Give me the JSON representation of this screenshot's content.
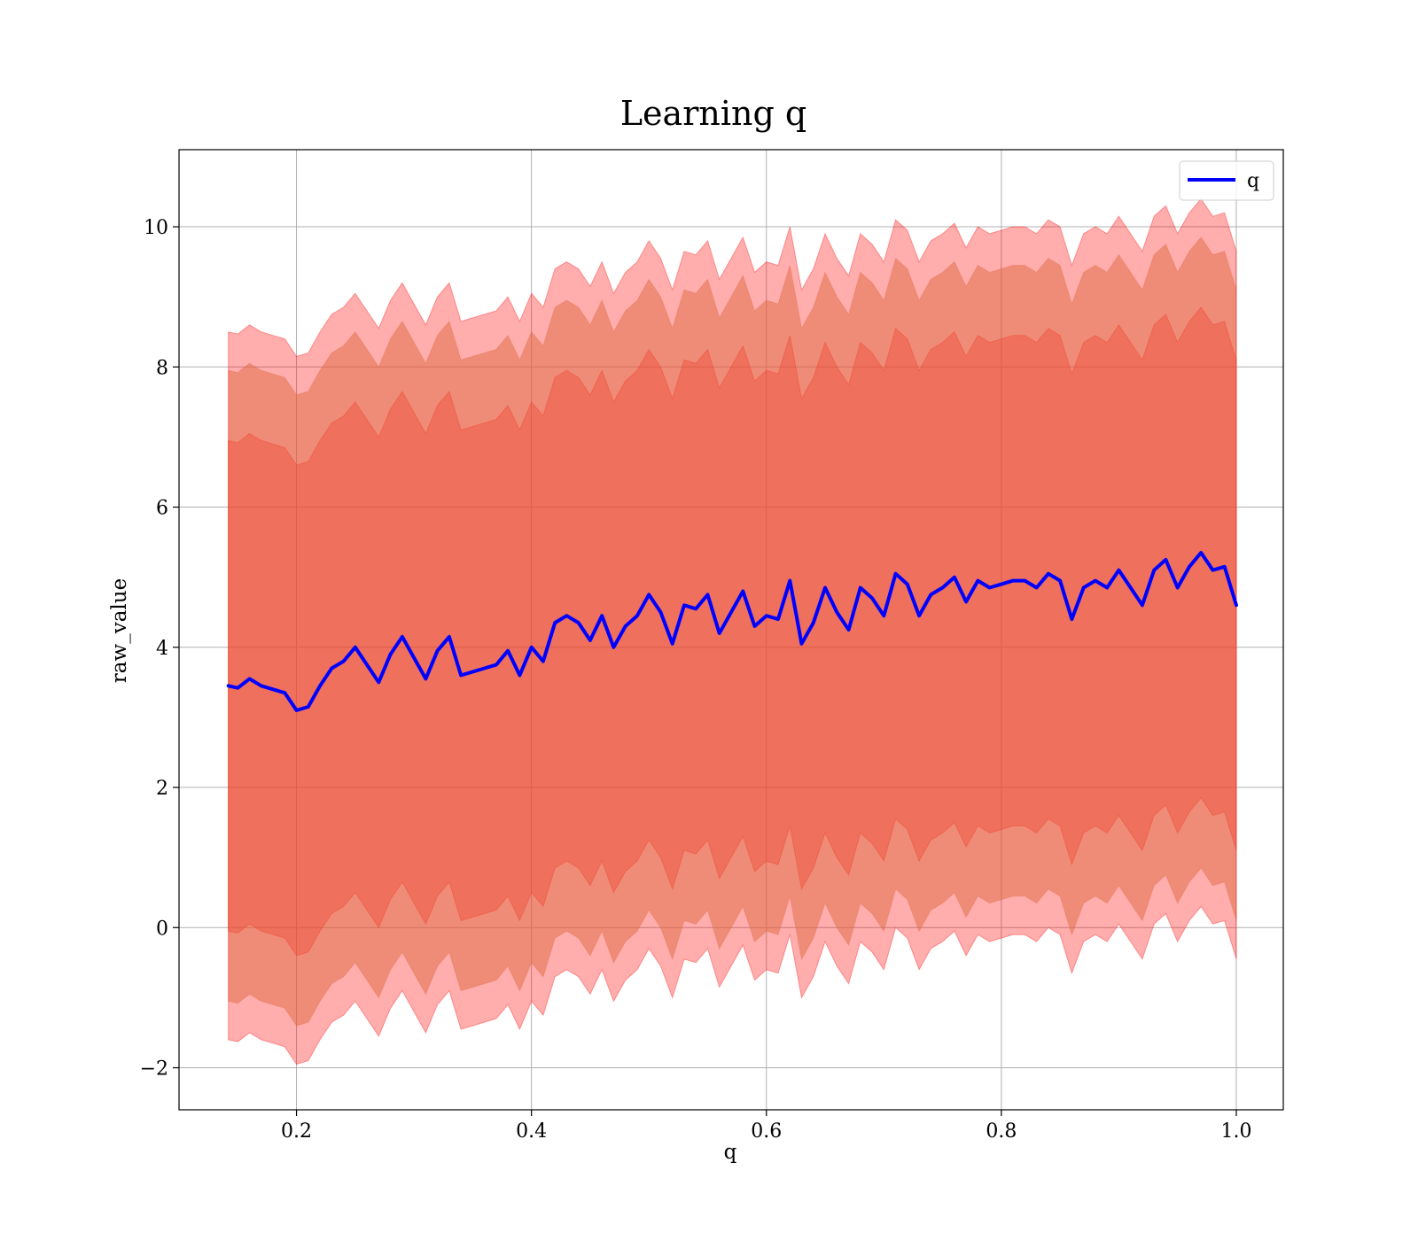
{
  "chart_data": {
    "type": "line",
    "title": "Learning q",
    "xlabel": "q",
    "ylabel": "raw_value",
    "xlim": [
      0.1,
      1.04
    ],
    "ylim": [
      -2.6,
      11.1
    ],
    "xticks": [
      0.2,
      0.4,
      0.6,
      0.8,
      1.0
    ],
    "xtick_labels": [
      "0.2",
      "0.4",
      "0.6",
      "0.8",
      "1.0"
    ],
    "yticks": [
      -2,
      0,
      2,
      4,
      6,
      8,
      10
    ],
    "ytick_labels": [
      "−2",
      "0",
      "2",
      "4",
      "6",
      "8",
      "10"
    ],
    "grid": true,
    "legend": {
      "position": "top-right",
      "entries": [
        "q"
      ]
    },
    "series": [
      {
        "name": "q",
        "color": "#0000ff",
        "x": [
          0.142,
          0.15,
          0.16,
          0.17,
          0.18,
          0.19,
          0.2,
          0.21,
          0.22,
          0.23,
          0.24,
          0.25,
          0.26,
          0.27,
          0.28,
          0.29,
          0.3,
          0.31,
          0.32,
          0.33,
          0.34,
          0.35,
          0.36,
          0.37,
          0.38,
          0.39,
          0.4,
          0.41,
          0.42,
          0.43,
          0.44,
          0.45,
          0.46,
          0.47,
          0.48,
          0.49,
          0.5,
          0.51,
          0.52,
          0.53,
          0.54,
          0.55,
          0.56,
          0.57,
          0.58,
          0.59,
          0.6,
          0.61,
          0.62,
          0.63,
          0.64,
          0.65,
          0.66,
          0.67,
          0.68,
          0.69,
          0.7,
          0.71,
          0.72,
          0.73,
          0.74,
          0.75,
          0.76,
          0.77,
          0.78,
          0.79,
          0.8,
          0.81,
          0.82,
          0.83,
          0.84,
          0.85,
          0.86,
          0.87,
          0.88,
          0.89,
          0.9,
          0.91,
          0.92,
          0.93,
          0.94,
          0.95,
          0.96,
          0.97,
          0.98,
          0.99,
          1.0
        ],
        "values": [
          3.45,
          3.42,
          3.55,
          3.45,
          3.4,
          3.35,
          3.1,
          3.15,
          3.45,
          3.7,
          3.8,
          4.0,
          3.75,
          3.5,
          3.9,
          4.15,
          3.85,
          3.55,
          3.95,
          4.15,
          3.6,
          3.65,
          3.7,
          3.75,
          3.95,
          3.6,
          4.0,
          3.8,
          4.35,
          4.45,
          4.35,
          4.1,
          4.45,
          4.0,
          4.3,
          4.45,
          4.75,
          4.5,
          4.05,
          4.6,
          4.55,
          4.75,
          4.2,
          4.5,
          4.8,
          4.3,
          4.45,
          4.4,
          4.95,
          4.05,
          4.35,
          4.85,
          4.5,
          4.25,
          4.85,
          4.7,
          4.45,
          5.05,
          4.9,
          4.45,
          4.75,
          4.85,
          5.0,
          4.65,
          4.95,
          4.85,
          4.9,
          4.95,
          4.95,
          4.85,
          5.05,
          4.95,
          4.4,
          4.85,
          4.95,
          4.85,
          5.1,
          4.85,
          4.6,
          5.1,
          5.25,
          4.85,
          5.15,
          5.35,
          5.1,
          5.15,
          4.6
        ],
        "bands": [
          {
            "lower_offset": -3.5,
            "upper_offset": 3.5,
            "color": "#ff0000",
            "opacity": 0.32
          },
          {
            "lower_offset": -4.5,
            "upper_offset": 4.5,
            "color": "#d2a064",
            "opacity": 0.5
          },
          {
            "lower_offset": -5.05,
            "upper_offset": 5.05,
            "color": "#ff0000",
            "opacity": 0.32
          }
        ]
      }
    ]
  }
}
